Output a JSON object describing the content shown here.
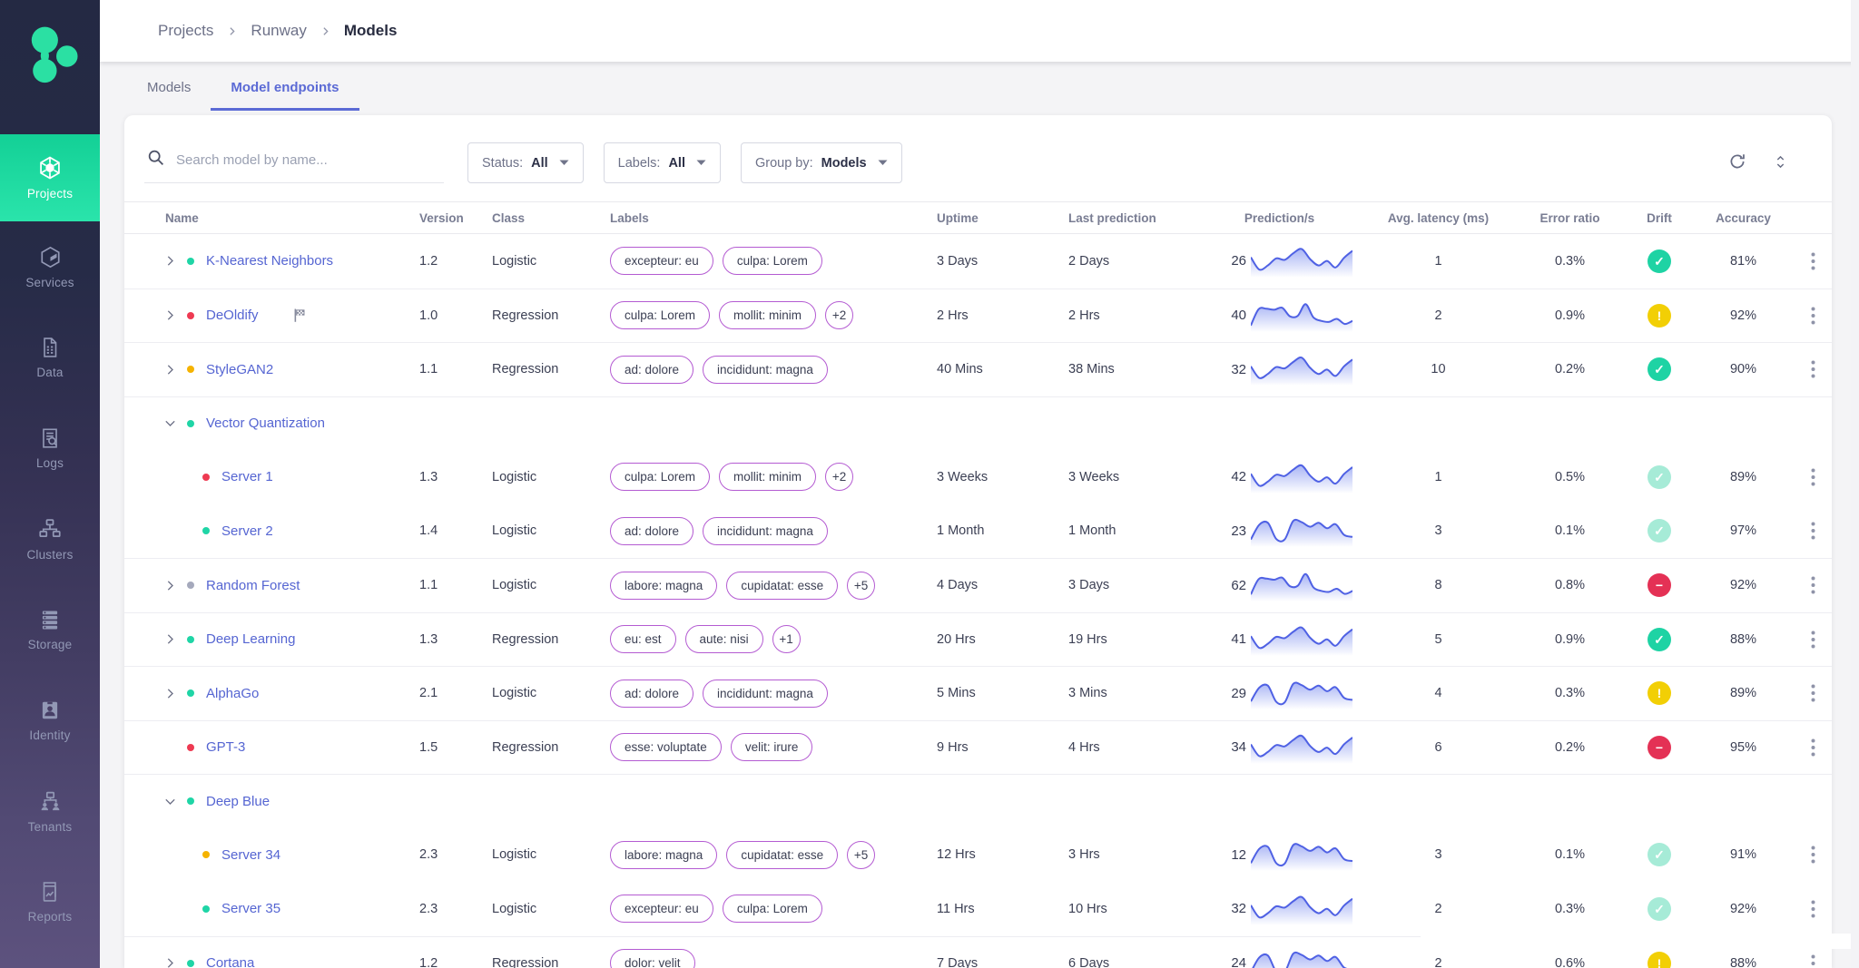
{
  "colors": {
    "sidebar_active": "#1bd89f",
    "logo_teal": "#2be0a3",
    "link_blue": "#5565d2",
    "tab_active": "#5b6ad5",
    "pill_border": "#b45bd2",
    "spark_line": "#4f61e4",
    "status_ok": "#1fd5a6",
    "status_error": "#ee3a52",
    "status_warning": "#f5b300",
    "status_idle": "#a5a9bc",
    "drift_ok": "#1ed3a4",
    "drift_ok_muted": "#a6ebd7",
    "drift_warning": "#f2cf05",
    "drift_blocked": "#e43155"
  },
  "breadcrumb": {
    "items": [
      "Projects",
      "Runway",
      "Models"
    ]
  },
  "tabs": [
    {
      "label": "Models",
      "active": false
    },
    {
      "label": "Model endpoints",
      "active": true
    }
  ],
  "sidebar": {
    "items": [
      {
        "label": "Projects",
        "icon": "projects-icon",
        "active": true
      },
      {
        "label": "Services",
        "icon": "services-icon",
        "active": false
      },
      {
        "label": "Data",
        "icon": "data-icon",
        "active": false
      },
      {
        "label": "Logs",
        "icon": "logs-icon",
        "active": false
      },
      {
        "label": "Clusters",
        "icon": "clusters-icon",
        "active": false
      },
      {
        "label": "Storage",
        "icon": "storage-icon",
        "active": false
      },
      {
        "label": "Identity",
        "icon": "identity-icon",
        "active": false
      },
      {
        "label": "Tenants",
        "icon": "tenants-icon",
        "active": false
      },
      {
        "label": "Reports",
        "icon": "reports-icon",
        "active": false
      }
    ]
  },
  "filters": {
    "search_placeholder": "Search model by name...",
    "dropdowns": [
      {
        "label": "Status:",
        "value": "All"
      },
      {
        "label": "Labels:",
        "value": "All"
      },
      {
        "label": "Group by:",
        "value": "Models"
      }
    ],
    "action_icons": [
      "refresh-icon",
      "unfold-more-icon"
    ]
  },
  "table": {
    "columns": [
      "Name",
      "Version",
      "Class",
      "Labels",
      "Uptime",
      "Last prediction",
      "Prediction/s",
      "Avg. latency (ms)",
      "Error ratio",
      "Drift",
      "Accuracy"
    ],
    "rows": [
      {
        "kind": "root",
        "chevron": "right",
        "status": "ok",
        "flag": false,
        "name": "K-Nearest Neighbors",
        "version": "1.2",
        "model_class": "Logistic",
        "labels": [
          "excepteur: eu",
          "culpa: Lorem"
        ],
        "labels_more": "",
        "uptime": "3 Days",
        "last_prediction": "2 Days",
        "predictions_per_s": "26",
        "spark": [
          62,
          14,
          30,
          58,
          52,
          78,
          95,
          55,
          30,
          48,
          22,
          60,
          88
        ],
        "avg_latency_ms": "1",
        "error_ratio": "0.3%",
        "drift": "ok",
        "accuracy": "81%"
      },
      {
        "kind": "root",
        "chevron": "right",
        "status": "error",
        "flag": true,
        "name": "DeOldify",
        "version": "1.0",
        "model_class": "Regression",
        "labels": [
          "culpa: Lorem",
          "mollit: minim"
        ],
        "labels_more": "+2",
        "uptime": "2 Hrs",
        "last_prediction": "2 Hrs",
        "predictions_per_s": "40",
        "spark": [
          8,
          72,
          74,
          70,
          78,
          44,
          46,
          92,
          40,
          26,
          22,
          34,
          14,
          26
        ],
        "avg_latency_ms": "2",
        "error_ratio": "0.9%",
        "drift": "warning",
        "accuracy": "92%"
      },
      {
        "kind": "root",
        "chevron": "right",
        "status": "warning",
        "flag": false,
        "name": "StyleGAN2",
        "version": "1.1",
        "model_class": "Regression",
        "labels": [
          "ad: dolore",
          "incididunt: magna"
        ],
        "labels_more": "",
        "uptime": "40 Mins",
        "last_prediction": "38 Mins",
        "predictions_per_s": "32",
        "spark": [
          58,
          12,
          28,
          55,
          50,
          75,
          92,
          52,
          28,
          45,
          20,
          58,
          85
        ],
        "avg_latency_ms": "10",
        "error_ratio": "0.2%",
        "drift": "ok",
        "accuracy": "90%"
      },
      {
        "kind": "group",
        "chevron": "down",
        "status": "ok",
        "flag": false,
        "name": "Vector Quantization"
      },
      {
        "kind": "child",
        "chevron": "none",
        "status": "error",
        "flag": false,
        "name": "Server 1",
        "version": "1.3",
        "model_class": "Logistic",
        "labels": [
          "culpa: Lorem",
          "mollit: minim"
        ],
        "labels_more": "+2",
        "uptime": "3 Weeks",
        "last_prediction": "3 Weeks",
        "predictions_per_s": "42",
        "spark": [
          60,
          13,
          29,
          56,
          51,
          76,
          93,
          53,
          29,
          46,
          21,
          59,
          86
        ],
        "avg_latency_ms": "1",
        "error_ratio": "0.5%",
        "drift": "ok-muted",
        "accuracy": "89%"
      },
      {
        "kind": "child",
        "chevron": "none",
        "status": "ok",
        "flag": false,
        "name": "Server 2",
        "version": "1.4",
        "model_class": "Logistic",
        "labels": [
          "ad: dolore",
          "incididunt: magna"
        ],
        "labels_more": "",
        "uptime": "1 Month",
        "last_prediction": "1 Month",
        "predictions_per_s": "23",
        "spark": [
          12,
          70,
          78,
          14,
          12,
          85,
          80,
          62,
          78,
          56,
          72,
          30,
          22
        ],
        "avg_latency_ms": "3",
        "error_ratio": "0.1%",
        "drift": "ok-muted",
        "accuracy": "97%"
      },
      {
        "kind": "root",
        "chevron": "right",
        "status": "idle",
        "flag": false,
        "name": "Random Forest",
        "version": "1.1",
        "model_class": "Logistic",
        "labels": [
          "labore: magna",
          "cupidatat: esse"
        ],
        "labels_more": "+5",
        "uptime": "4 Days",
        "last_prediction": "3 Days",
        "predictions_per_s": "62",
        "spark": [
          10,
          70,
          72,
          68,
          76,
          42,
          44,
          90,
          38,
          24,
          20,
          32,
          12,
          24
        ],
        "avg_latency_ms": "8",
        "error_ratio": "0.8%",
        "drift": "blocked",
        "accuracy": "92%"
      },
      {
        "kind": "root",
        "chevron": "right",
        "status": "ok",
        "flag": false,
        "name": "Deep Learning",
        "version": "1.3",
        "model_class": "Regression",
        "labels": [
          "eu: est",
          "aute: nisi"
        ],
        "labels_more": "+1",
        "uptime": "20 Hrs",
        "last_prediction": "19 Hrs",
        "predictions_per_s": "41",
        "spark": [
          60,
          14,
          30,
          57,
          52,
          77,
          94,
          54,
          30,
          47,
          22,
          60,
          87
        ],
        "avg_latency_ms": "5",
        "error_ratio": "0.9%",
        "drift": "ok",
        "accuracy": "88%"
      },
      {
        "kind": "root",
        "chevron": "right",
        "status": "ok",
        "flag": false,
        "name": "AlphaGo",
        "version": "2.1",
        "model_class": "Logistic",
        "labels": [
          "ad: dolore",
          "incididunt: magna"
        ],
        "labels_more": "",
        "uptime": "5 Mins",
        "last_prediction": "3 Mins",
        "predictions_per_s": "29",
        "spark": [
          14,
          68,
          76,
          12,
          10,
          83,
          78,
          60,
          76,
          54,
          70,
          28,
          20
        ],
        "avg_latency_ms": "4",
        "error_ratio": "0.3%",
        "drift": "warning",
        "accuracy": "89%"
      },
      {
        "kind": "root",
        "chevron": "none",
        "status": "error",
        "flag": false,
        "name": "GPT-3",
        "version": "1.5",
        "model_class": "Regression",
        "labels": [
          "esse: voluptate",
          "velit: irure"
        ],
        "labels_more": "",
        "uptime": "9 Hrs",
        "last_prediction": "4 Hrs",
        "predictions_per_s": "34",
        "spark": [
          59,
          13,
          29,
          56,
          51,
          76,
          93,
          53,
          29,
          46,
          21,
          59,
          86
        ],
        "avg_latency_ms": "6",
        "error_ratio": "0.2%",
        "drift": "blocked",
        "accuracy": "95%"
      },
      {
        "kind": "group",
        "chevron": "down",
        "status": "ok",
        "flag": false,
        "name": "Deep Blue"
      },
      {
        "kind": "child",
        "chevron": "none",
        "status": "warning",
        "flag": false,
        "name": "Server 34",
        "version": "2.3",
        "model_class": "Logistic",
        "labels": [
          "labore: magna",
          "cupidatat: esse"
        ],
        "labels_more": "+5",
        "uptime": "12 Hrs",
        "last_prediction": "3 Hrs",
        "predictions_per_s": "12",
        "spark": [
          13,
          69,
          77,
          13,
          11,
          84,
          79,
          61,
          77,
          55,
          71,
          29,
          21
        ],
        "avg_latency_ms": "3",
        "error_ratio": "0.1%",
        "drift": "ok-muted",
        "accuracy": "91%"
      },
      {
        "kind": "child",
        "chevron": "none",
        "status": "ok",
        "flag": false,
        "name": "Server 35",
        "version": "2.3",
        "model_class": "Logistic",
        "labels": [
          "excepteur: eu",
          "culpa: Lorem"
        ],
        "labels_more": "",
        "uptime": "11 Hrs",
        "last_prediction": "10 Hrs",
        "predictions_per_s": "32",
        "spark": [
          61,
          14,
          30,
          57,
          52,
          77,
          94,
          54,
          30,
          47,
          22,
          60,
          87
        ],
        "avg_latency_ms": "2",
        "error_ratio": "0.3%",
        "drift": "ok-muted",
        "accuracy": "92%"
      },
      {
        "kind": "root",
        "chevron": "right",
        "status": "ok",
        "flag": false,
        "name": "Cortana",
        "version": "1.2",
        "model_class": "Regression",
        "labels": [
          "dolor: velit"
        ],
        "labels_more": "",
        "uptime": "7 Days",
        "last_prediction": "6 Days",
        "predictions_per_s": "24",
        "spark": [
          12,
          70,
          78,
          14,
          12,
          85,
          80,
          62,
          78,
          56,
          72,
          30,
          22
        ],
        "avg_latency_ms": "2",
        "error_ratio": "0.6%",
        "drift": "warning",
        "accuracy": "88%"
      }
    ]
  }
}
